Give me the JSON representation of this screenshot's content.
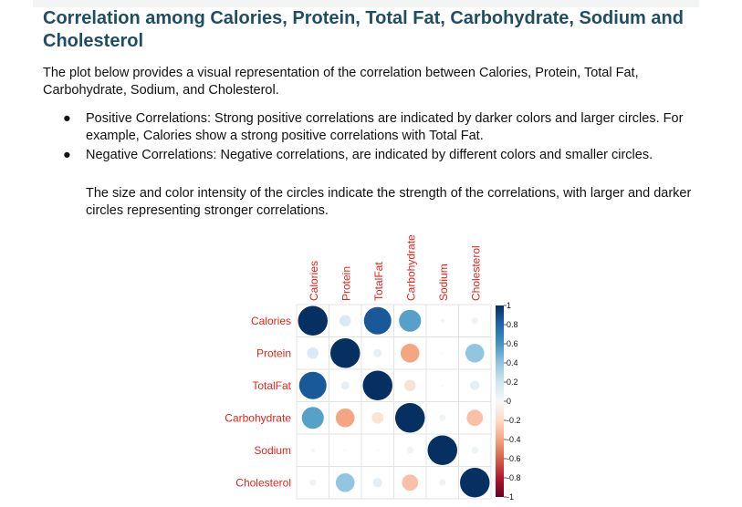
{
  "title": "Correlation among Calories, Protein, Total Fat, Carbohydrate, Sodium and Cholesterol",
  "intro": "The plot below provides a visual representation of the correlation between Calories, Protein, Total Fat, Carbohydrate, Sodium, and Cholesterol.",
  "bullets": [
    "Positive Correlations: Strong positive correlations are indicated by darker colors and larger circles. For example, Calories show a strong positive correlations with Total Fat.",
    "Negative Correlations: Negative correlations, are indicated by different colors and smaller circles."
  ],
  "note": "The size and color intensity of the circles indicate the strength of the correlations, with larger and darker circles representing stronger correlations.",
  "bullet_symbol": "●",
  "colors": {
    "title": "#1f4e64",
    "row_labels": "#e0251b",
    "negative_dark": "#67001f",
    "positive_dark": "#053061"
  },
  "chart_data": {
    "type": "heatmap",
    "variables": [
      "Calories",
      "Protein",
      "TotalFat",
      "Carbohydrate",
      "Sodium",
      "Cholesterol"
    ],
    "matrix": [
      [
        1.0,
        0.15,
        0.85,
        0.55,
        0.02,
        0.05
      ],
      [
        0.15,
        1.0,
        0.08,
        -0.4,
        0.0,
        0.4
      ],
      [
        0.85,
        0.08,
        1.0,
        -0.15,
        0.0,
        0.1
      ],
      [
        0.55,
        -0.4,
        -0.15,
        1.0,
        0.05,
        -0.3
      ],
      [
        0.02,
        0.0,
        0.0,
        0.05,
        1.0,
        0.05
      ],
      [
        0.05,
        0.4,
        0.1,
        -0.3,
        0.05,
        1.0
      ]
    ],
    "colorbar": {
      "range": [
        -1,
        1
      ],
      "ticks": [
        "1",
        "0.8",
        "0.6",
        "0.4",
        "0.2",
        "0",
        "-0.2",
        "-0.4",
        "-0.6",
        "-0.8",
        "-1"
      ]
    },
    "grid": true,
    "legend": "right"
  }
}
